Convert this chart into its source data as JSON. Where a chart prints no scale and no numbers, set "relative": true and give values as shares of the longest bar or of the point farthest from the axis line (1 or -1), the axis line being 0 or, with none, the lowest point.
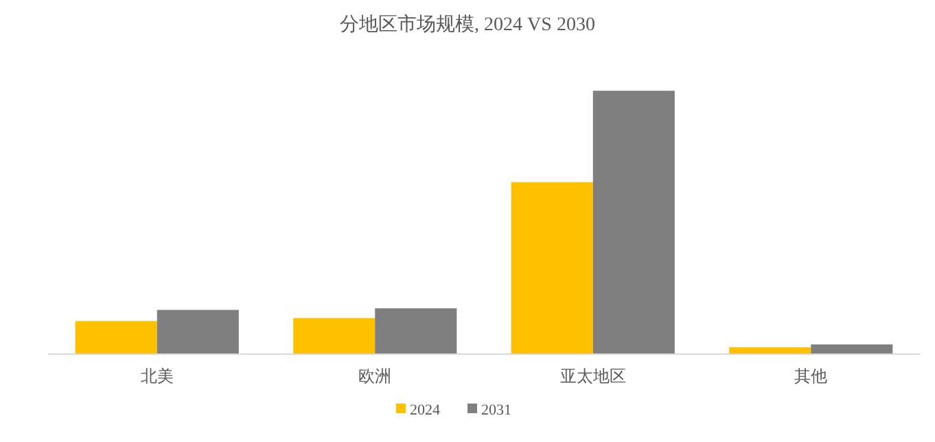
{
  "chart_data": {
    "type": "bar",
    "title": "分地区市场规模, 2024 VS 2030",
    "categories": [
      "北美",
      "欧洲",
      "亚太地区",
      "其他"
    ],
    "relative": true,
    "legend": "bottom",
    "series": [
      {
        "name": "2024",
        "color": "#ffc000",
        "values": [
          0.126,
          0.137,
          0.653,
          0.026
        ]
      },
      {
        "name": "2031",
        "color": "#7f7f7f",
        "values": [
          0.168,
          0.174,
          1,
          0.037
        ]
      }
    ]
  }
}
